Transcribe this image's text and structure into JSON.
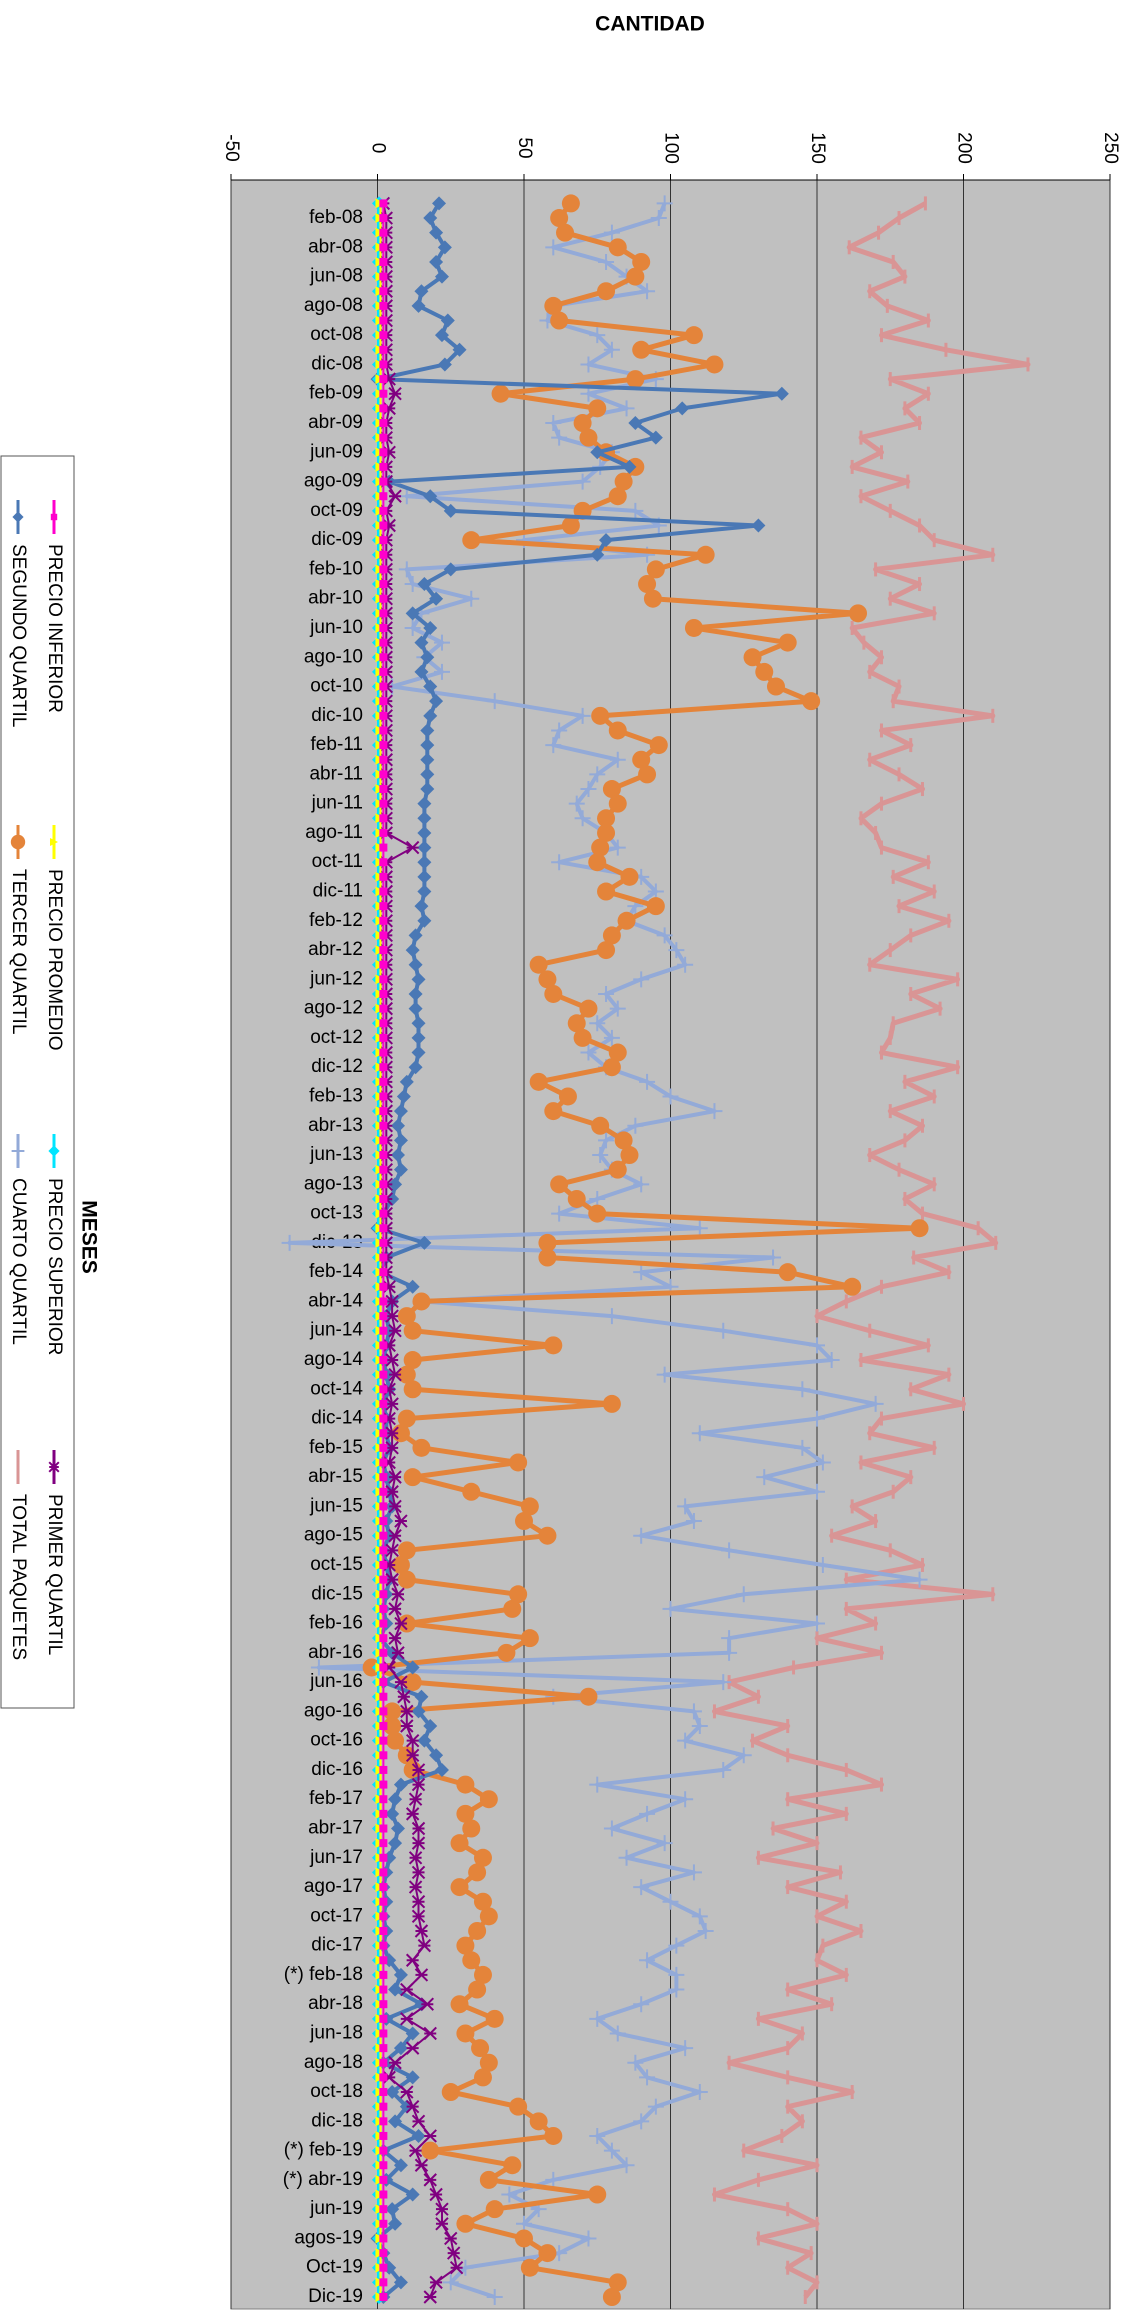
{
  "chart_data": {
    "type": "line",
    "y_label": "CANTIDAD",
    "x_label": "MESES",
    "orientation": "horizontal",
    "grid": true,
    "legend": "left",
    "ylim": [
      -50,
      250
    ],
    "yticks": [
      -50,
      0,
      50,
      100,
      150,
      200,
      250
    ],
    "categories": [
      null,
      "feb-08",
      null,
      "abr-08",
      null,
      "jun-08",
      null,
      "ago-08",
      null,
      "oct-08",
      null,
      "dic-08",
      null,
      "feb-09",
      null,
      "abr-09",
      null,
      "jun-09",
      null,
      "ago-09",
      null,
      "oct-09",
      null,
      "dic-09",
      null,
      "feb-10",
      null,
      "abr-10",
      null,
      "jun-10",
      null,
      "ago-10",
      null,
      "oct-10",
      null,
      "dic-10",
      null,
      "feb-11",
      null,
      "abr-11",
      null,
      "jun-11",
      null,
      "ago-11",
      null,
      "oct-11",
      null,
      "dic-11",
      null,
      "feb-12",
      null,
      "abr-12",
      null,
      "jun-12",
      null,
      "ago-12",
      null,
      "oct-12",
      null,
      "dic-12",
      null,
      "feb-13",
      null,
      "abr-13",
      null,
      "jun-13",
      null,
      "ago-13",
      null,
      "oct-13",
      null,
      "dic-13",
      null,
      "feb-14",
      null,
      "abr-14",
      null,
      "jun-14",
      null,
      "ago-14",
      null,
      "oct-14",
      null,
      "dic-14",
      null,
      "feb-15",
      null,
      "abr-15",
      null,
      "jun-15",
      null,
      "ago-15",
      null,
      "oct-15",
      null,
      "dic-15",
      null,
      "feb-16",
      null,
      "abr-16",
      null,
      "jun-16",
      null,
      "ago-16",
      null,
      "oct-16",
      null,
      "dic-16",
      null,
      "feb-17",
      null,
      "abr-17",
      null,
      "jun-17",
      null,
      "ago-17",
      null,
      "oct-17",
      null,
      "dic-17",
      null,
      "(*) feb-18",
      null,
      "abr-18",
      null,
      "jun-18",
      null,
      "ago-18",
      null,
      "oct-18",
      null,
      "dic-18",
      null,
      "(*) feb-19",
      null,
      "(*) abr-19",
      null,
      "jun-19",
      null,
      "agos-19",
      null,
      "Oct-19",
      null,
      "Dic-19"
    ],
    "series": [
      {
        "name": "PRECIO INFERIOR",
        "color": "#ff00cc",
        "marker": "square",
        "values": [
          2,
          2,
          2,
          2,
          2,
          2,
          2,
          2,
          2,
          2,
          2,
          2,
          2,
          2,
          2,
          2,
          2,
          2,
          2,
          2,
          2,
          2,
          2,
          2,
          2,
          2,
          2,
          2,
          2,
          2,
          2,
          2,
          2,
          2,
          2,
          2,
          2,
          2,
          2,
          2,
          2,
          2,
          2,
          2,
          2,
          2,
          2,
          2,
          2,
          2,
          2,
          2,
          2,
          2,
          2,
          2,
          2,
          2,
          2,
          2,
          2,
          2,
          2,
          2,
          2,
          2,
          2,
          2,
          2,
          2,
          2,
          2,
          2,
          2,
          2,
          2,
          2,
          2,
          2,
          2,
          2,
          2,
          2,
          2,
          2,
          2,
          2,
          2,
          2,
          2,
          2,
          2,
          2,
          2,
          2,
          2,
          2,
          2,
          2,
          2,
          2,
          2,
          2,
          2,
          2,
          2,
          2,
          2,
          2,
          2,
          2,
          2,
          2,
          2,
          2,
          2,
          2,
          2,
          2,
          2,
          2,
          2,
          2,
          2,
          2,
          2,
          2,
          2,
          2,
          2,
          2,
          2,
          2,
          2,
          2,
          2,
          2,
          2,
          2,
          2,
          2,
          2,
          2,
          2
        ]
      },
      {
        "name": "PRECIO PROMEDIO",
        "color": "#ffff00",
        "marker": "triangle",
        "values": [
          1,
          1,
          1,
          1,
          1,
          1,
          1,
          1,
          1,
          1,
          1,
          1,
          1,
          1,
          1,
          1,
          1,
          1,
          1,
          1,
          1,
          1,
          1,
          1,
          1,
          1,
          1,
          1,
          1,
          1,
          1,
          1,
          1,
          1,
          1,
          1,
          1,
          1,
          1,
          1,
          1,
          1,
          1,
          1,
          1,
          1,
          1,
          1,
          1,
          1,
          1,
          1,
          1,
          1,
          1,
          1,
          1,
          1,
          1,
          1,
          1,
          1,
          1,
          1,
          1,
          1,
          1,
          1,
          1,
          1,
          1,
          1,
          1,
          1,
          1,
          1,
          1,
          1,
          1,
          1,
          1,
          1,
          1,
          1,
          1,
          1,
          1,
          1,
          1,
          1,
          1,
          1,
          1,
          1,
          1,
          1,
          1,
          1,
          1,
          1,
          1,
          1,
          1,
          1,
          1,
          1,
          1,
          1,
          1,
          1,
          1,
          1,
          1,
          1,
          1,
          1,
          1,
          1,
          1,
          1,
          1,
          1,
          1,
          1,
          1,
          1,
          1,
          1,
          1,
          1,
          1,
          1,
          1,
          1,
          1,
          1,
          1,
          1,
          1,
          1,
          1,
          1,
          1,
          1
        ]
      },
      {
        "name": "PRECIO SUPERIOR",
        "color": "#00e5ff",
        "marker": "diamond",
        "values": [
          0.5,
          0.5,
          0.5,
          0.5,
          0.5,
          0.5,
          0.5,
          0.5,
          0.5,
          0.5,
          0.5,
          0.5,
          0.5,
          0.5,
          0.5,
          0.5,
          0.5,
          0.5,
          0.5,
          0.5,
          0.5,
          0.5,
          0.5,
          0.5,
          0.5,
          0.5,
          0.5,
          0.5,
          0.5,
          0.5,
          0.5,
          0.5,
          0.5,
          0.5,
          0.5,
          0.5,
          0.5,
          0.5,
          0.5,
          0.5,
          0.5,
          0.5,
          0.5,
          0.5,
          0.5,
          0.5,
          0.5,
          0.5,
          0.5,
          0.5,
          0.5,
          0.5,
          0.5,
          0.5,
          0.5,
          0.5,
          0.5,
          0.5,
          0.5,
          0.5,
          0.5,
          0.5,
          0.5,
          0.5,
          0.5,
          0.5,
          0.5,
          0.5,
          0.5,
          0.5,
          0.5,
          0.5,
          0.5,
          0.5,
          0.5,
          0.5,
          0.5,
          0.5,
          0.5,
          0.5,
          0.5,
          0.5,
          0.5,
          0.5,
          0.5,
          0.5,
          0.5,
          0.5,
          0.5,
          0.5,
          0.5,
          0.5,
          0.5,
          0.5,
          0.5,
          0.5,
          0.5,
          0.5,
          0.5,
          0.5,
          0.5,
          0.5,
          0.5,
          0.5,
          0.5,
          0.5,
          0.5,
          0.5,
          0.5,
          0.5,
          0.5,
          0.5,
          0.5,
          0.5,
          0.5,
          0.5,
          0.5,
          0.5,
          0.5,
          0.5,
          0.5,
          0.5,
          0.5,
          0.5,
          0.5,
          0.5,
          0.5,
          0.5,
          0.5,
          0.5,
          0.5,
          0.5,
          0.5,
          0.5,
          0.5,
          0.5,
          0.5,
          0.5,
          0.5,
          0.5,
          0.5,
          0.5,
          0.5,
          0.5
        ]
      },
      {
        "name": "PRIMER QUARTIL",
        "color": "#800080",
        "marker": "x",
        "values": [
          2,
          3,
          3,
          3,
          3,
          3,
          3,
          3,
          3,
          3,
          3,
          3,
          4,
          6,
          4,
          3,
          3,
          4,
          3,
          3,
          6,
          3,
          4,
          3,
          3,
          3,
          3,
          3,
          3,
          3,
          3,
          3,
          3,
          3,
          3,
          3,
          3,
          3,
          3,
          3,
          3,
          3,
          3,
          3,
          12,
          3,
          3,
          3,
          3,
          3,
          3,
          3,
          3,
          3,
          3,
          3,
          3,
          3,
          3,
          3,
          3,
          3,
          3,
          3,
          3,
          3,
          3,
          3,
          3,
          3,
          3,
          3,
          3,
          3,
          4,
          5,
          5,
          6,
          4,
          5,
          6,
          4,
          5,
          4,
          5,
          5,
          4,
          6,
          5,
          6,
          8,
          6,
          5,
          4,
          5,
          7,
          6,
          8,
          6,
          7,
          4,
          8,
          9,
          10,
          10,
          12,
          12,
          14,
          14,
          13,
          12,
          14,
          14,
          13,
          14,
          13,
          14,
          14,
          15,
          16,
          12,
          15,
          10,
          17,
          10,
          18,
          12,
          6,
          4,
          10,
          12,
          14,
          18,
          13,
          15,
          18,
          20,
          22,
          22,
          25,
          26,
          27,
          20,
          18
        ]
      },
      {
        "name": "SEGUNDO QUARTIL",
        "color": "#4a78b5",
        "marker": "diamond",
        "values": [
          21,
          18,
          20,
          23,
          20,
          22,
          15,
          14,
          24,
          22,
          28,
          23,
          0,
          138,
          104,
          88,
          95,
          75,
          86,
          4,
          18,
          25,
          130,
          78,
          75,
          25,
          16,
          20,
          12,
          18,
          15,
          17,
          15,
          18,
          20,
          18,
          17,
          17,
          17,
          17,
          17,
          16,
          16,
          16,
          16,
          16,
          16,
          16,
          15,
          16,
          13,
          12,
          13,
          14,
          13,
          13,
          14,
          14,
          14,
          13,
          10,
          9,
          8,
          7,
          8,
          7,
          8,
          6,
          5,
          2,
          0,
          16,
          3,
          1,
          12,
          5,
          3,
          4,
          3,
          2,
          3,
          4,
          2,
          3,
          3,
          4,
          2,
          3,
          4,
          5,
          3,
          4,
          2,
          3,
          4,
          3,
          2,
          3,
          1,
          5,
          12,
          2,
          15,
          14,
          18,
          16,
          20,
          22,
          8,
          6,
          5,
          7,
          6,
          4,
          3,
          2,
          3,
          2,
          3,
          2,
          4,
          8,
          6,
          15,
          3,
          12,
          8,
          2,
          12,
          5,
          10,
          6,
          14,
          2,
          8,
          3,
          12,
          5,
          6,
          0,
          2,
          4,
          8,
          2
        ]
      },
      {
        "name": "TERCER QUARTIL",
        "color": "#e4843a",
        "marker": "circle",
        "values": [
          66,
          62,
          64,
          82,
          90,
          88,
          78,
          60,
          62,
          108,
          90,
          115,
          88,
          42,
          75,
          70,
          72,
          78,
          88,
          84,
          82,
          70,
          66,
          32,
          112,
          95,
          92,
          94,
          164,
          108,
          140,
          128,
          132,
          136,
          148,
          76,
          82,
          96,
          90,
          92,
          80,
          82,
          78,
          78,
          76,
          75,
          86,
          78,
          95,
          85,
          80,
          78,
          55,
          58,
          60,
          72,
          68,
          70,
          82,
          80,
          55,
          65,
          60,
          76,
          84,
          86,
          82,
          62,
          68,
          75,
          185,
          58,
          58,
          140,
          162,
          15,
          10,
          12,
          60,
          12,
          10,
          12,
          80,
          10,
          8,
          15,
          48,
          12,
          32,
          52,
          50,
          58,
          10,
          8,
          10,
          48,
          46,
          10,
          52,
          44,
          -2,
          12,
          72,
          5,
          5,
          6,
          10,
          12,
          30,
          38,
          30,
          32,
          28,
          36,
          34,
          28,
          36,
          38,
          34,
          30,
          32,
          36,
          34,
          28,
          40,
          30,
          35,
          38,
          36,
          25,
          48,
          55,
          60,
          18,
          46,
          38,
          75,
          40,
          30,
          50,
          58,
          52,
          82,
          80
        ]
      },
      {
        "name": "CUARTO QUARTIL",
        "color": "#93aad8",
        "marker": "plus",
        "values": [
          98,
          96,
          80,
          60,
          78,
          85,
          92,
          60,
          58,
          75,
          80,
          72,
          95,
          72,
          85,
          60,
          62,
          80,
          76,
          70,
          10,
          88,
          96,
          50,
          92,
          10,
          12,
          32,
          15,
          12,
          22,
          16,
          22,
          5,
          40,
          70,
          62,
          60,
          82,
          75,
          72,
          68,
          70,
          78,
          82,
          62,
          90,
          95,
          88,
          85,
          98,
          102,
          105,
          90,
          78,
          82,
          75,
          80,
          72,
          78,
          92,
          100,
          115,
          88,
          78,
          76,
          80,
          90,
          75,
          62,
          110,
          -30,
          135,
          90,
          100,
          15,
          80,
          118,
          150,
          155,
          98,
          145,
          170,
          150,
          110,
          145,
          152,
          132,
          150,
          105,
          108,
          90,
          120,
          152,
          185,
          125,
          100,
          150,
          120,
          120,
          -20,
          118,
          60,
          108,
          110,
          105,
          125,
          118,
          75,
          105,
          92,
          80,
          98,
          85,
          108,
          90,
          100,
          110,
          112,
          102,
          92,
          102,
          102,
          90,
          75,
          82,
          105,
          88,
          92,
          110,
          95,
          90,
          75,
          80,
          85,
          60,
          45,
          55,
          50,
          72,
          62,
          30,
          25,
          40
        ]
      },
      {
        "name": "TOTAL  PAQUETES",
        "color": "#d99595",
        "marker": "dash",
        "values": [
          187,
          178,
          171,
          161,
          176,
          180,
          168,
          174,
          188,
          172,
          194,
          222,
          175,
          188,
          180,
          185,
          165,
          172,
          162,
          181,
          165,
          175,
          185,
          190,
          210,
          170,
          185,
          175,
          190,
          162,
          166,
          172,
          168,
          178,
          176,
          210,
          172,
          182,
          168,
          178,
          186,
          172,
          165,
          170,
          172,
          188,
          176,
          190,
          178,
          195,
          182,
          175,
          168,
          198,
          182,
          192,
          176,
          175,
          172,
          198,
          180,
          190,
          175,
          186,
          180,
          168,
          178,
          190,
          180,
          186,
          205,
          211,
          183,
          195,
          172,
          160,
          150,
          168,
          188,
          165,
          195,
          182,
          200,
          172,
          168,
          190,
          165,
          182,
          176,
          162,
          170,
          155,
          175,
          186,
          160,
          210,
          160,
          170,
          150,
          172,
          142,
          120,
          130,
          115,
          140,
          128,
          140,
          160,
          172,
          140,
          160,
          135,
          150,
          130,
          158,
          140,
          160,
          150,
          165,
          152,
          150,
          160,
          140,
          155,
          130,
          145,
          140,
          120,
          140,
          162,
          140,
          145,
          138,
          125,
          150,
          130,
          115,
          140,
          150,
          130,
          148,
          140,
          150,
          146
        ]
      }
    ]
  }
}
